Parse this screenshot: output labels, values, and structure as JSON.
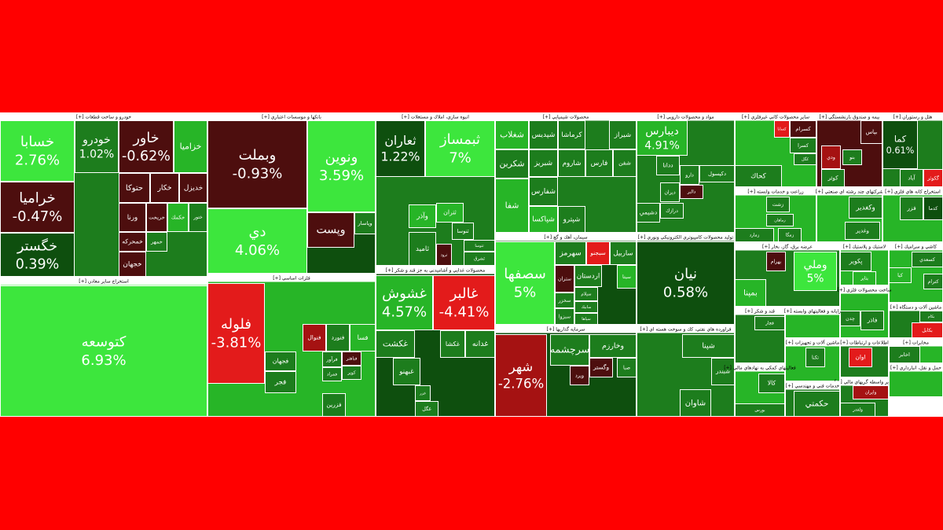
{
  "chart_data": {
    "type": "treemap",
    "sectors": [
      {
        "name": "[+] خودرو و ساخت قطعات",
        "color": "#1d7d1d",
        "tiles": [
          {
            "label": "خسابا",
            "value": 2.76,
            "value_label": "2.76%",
            "color": "#3de63d"
          },
          {
            "label": "خراميا",
            "value": -0.47,
            "value_label": "-0.47%",
            "color": "#4d0e0e"
          },
          {
            "label": "خگستر",
            "value": 0.39,
            "value_label": "0.39%",
            "color": "#0e4f0e"
          },
          {
            "label": "خودرو",
            "value": 1.02,
            "value_label": "1.02%",
            "color": "#1d7d1d"
          },
          {
            "label": "خاور",
            "value": -0.62,
            "value_label": "-0.62%",
            "color": "#4d0e0e"
          },
          {
            "label": "خزامیا",
            "color": "#27b527"
          },
          {
            "label": "حتوكا",
            "color": "#4d0e0e"
          },
          {
            "label": "خكار",
            "color": "#4d0e0e"
          },
          {
            "label": "خديزل",
            "color": "#4d0e0e"
          },
          {
            "label": "ورنا",
            "color": "#4d0e0e"
          },
          {
            "label": "خريخت",
            "color": "#4d0e0e"
          },
          {
            "label": "خكمك",
            "color": "#27b527"
          },
          {
            "label": "ختور",
            "color": "#1d7d1d"
          },
          {
            "label": "خمحركه",
            "color": "#4d0e0e"
          },
          {
            "label": "خمهر",
            "color": "#1d7d1d"
          },
          {
            "label": "خجهان",
            "color": "#4d0e0e"
          }
        ]
      },
      {
        "name": "[+] استخراج ساير معادن",
        "color": "#3de63d",
        "tiles": [
          {
            "label": "كتوسعه",
            "value": 6.93,
            "value_label": "6.93%",
            "color": "#3de63d"
          }
        ]
      },
      {
        "name": "[+] بانكها و موسسات اعتباري",
        "color": "#0e4f0e",
        "tiles": [
          {
            "label": "وبملت",
            "value": -0.93,
            "value_label": "-0.93%",
            "color": "#4d0e0e"
          },
          {
            "label": "ونوين",
            "value": 3.59,
            "value_label": "3.59%",
            "color": "#3de63d"
          },
          {
            "label": "دي",
            "value": 4.06,
            "value_label": "4.06%",
            "color": "#3de63d"
          },
          {
            "label": "وپست",
            "color": "#4d0e0e"
          },
          {
            "label": "وپاسار",
            "color": "#1d7d1d"
          }
        ]
      },
      {
        "name": "[+] فلزات اساسي",
        "color": "#27b527",
        "tiles": [
          {
            "label": "فلوله",
            "value": -3.81,
            "value_label": "-3.81%",
            "color": "#e31b1b"
          },
          {
            "label": "فنوال",
            "color": "#a51212"
          },
          {
            "label": "فنورد",
            "color": "#1d7d1d"
          },
          {
            "label": "فسا",
            "color": "#27b527"
          },
          {
            "label": "فجهان",
            "color": "#1d7d1d"
          },
          {
            "label": "فرآور",
            "color": "#1d7d1d"
          },
          {
            "label": "فباهنر",
            "color": "#4d0e0e"
          },
          {
            "label": "فمراد",
            "color": "#1d7d1d"
          },
          {
            "label": "كوير",
            "color": "#1d7d1d"
          },
          {
            "label": "فجر",
            "color": "#1d7d1d"
          },
          {
            "label": "فزرين",
            "color": "#1d7d1d"
          }
        ]
      },
      {
        "name": "[+] انبوه سازي، املاك و مستغلات",
        "color": "#1d7d1d",
        "tiles": [
          {
            "label": "ثعاران",
            "value": 1.22,
            "value_label": "1.22%",
            "color": "#0e4f0e"
          },
          {
            "label": "ثبمساز",
            "value": 7,
            "value_label": "7%",
            "color": "#3de63d"
          },
          {
            "label": "وآذر",
            "color": "#27b527"
          },
          {
            "label": "ثتران",
            "color": "#27b527"
          },
          {
            "label": "ثاميد",
            "color": "#1d7d1d"
          },
          {
            "label": "ثرود",
            "color": "#4d0e0e"
          },
          {
            "label": "ثنوسا",
            "color": "#1d7d1d"
          },
          {
            "label": "ثتوسا",
            "color": "#1d7d1d"
          },
          {
            "label": "ثشرق",
            "color": "#1d7d1d"
          }
        ]
      },
      {
        "name": "[+] محصولات غذايي و آشاميدني به جز قند و شكر",
        "color": "#0e4f0e",
        "tiles": [
          {
            "label": "غشوش",
            "value": 4.57,
            "value_label": "4.57%",
            "color": "#27b527"
          },
          {
            "label": "غالبر",
            "value": -4.41,
            "value_label": "-4.41%",
            "color": "#e31b1b"
          },
          {
            "label": "غكشت",
            "color": "#1d7d1d"
          },
          {
            "label": "غكشا",
            "color": "#1d7d1d"
          },
          {
            "label": "غدانه",
            "color": "#1d7d1d"
          },
          {
            "label": "غبهنو",
            "color": "#1d7d1d"
          },
          {
            "label": "غزر",
            "color": "#1d7d1d"
          },
          {
            "label": "غگل",
            "color": "#1d7d1d"
          }
        ]
      },
      {
        "name": "[+] محصولات شيميايي",
        "color": "#1d7d1d",
        "tiles": [
          {
            "label": "شغلاب",
            "color": "#27b527"
          },
          {
            "label": "شپديس",
            "color": "#1d7d1d"
          },
          {
            "label": "كرماشا",
            "color": "#1d7d1d"
          },
          {
            "label": "شيراز",
            "color": "#1d7d1d"
          },
          {
            "label": "شكربن",
            "color": "#1d7d1d"
          },
          {
            "label": "شبريز",
            "color": "#1d7d1d"
          },
          {
            "label": "شاروم",
            "color": "#1d7d1d"
          },
          {
            "label": "فارس",
            "color": "#1d7d1d"
          },
          {
            "label": "شفن",
            "color": "#1d7d1d"
          },
          {
            "label": "شپاكسا",
            "color": "#27b527"
          },
          {
            "label": "شفارس",
            "color": "#1d7d1d"
          },
          {
            "label": "شپترو",
            "color": "#1d7d1d"
          },
          {
            "label": "شفا",
            "color": "#27b527"
          }
        ]
      },
      {
        "name": "[+] سيمان، آهك و گچ",
        "color": "#0e4f0e",
        "tiles": [
          {
            "label": "سصفها",
            "value": 5,
            "value_label": "5%",
            "color": "#3de63d"
          },
          {
            "label": "سهرمز",
            "color": "#1d7d1d"
          },
          {
            "label": "سبجنو",
            "color": "#e31b1b"
          },
          {
            "label": "ساربيل",
            "color": "#1d7d1d"
          },
          {
            "label": "ستران",
            "color": "#4d0e0e"
          },
          {
            "label": "اردستان",
            "color": "#1d7d1d"
          },
          {
            "label": "سيتا",
            "color": "#27b527"
          },
          {
            "label": "سيلام",
            "color": "#1d7d1d"
          },
          {
            "label": "سخزر",
            "color": "#1d7d1d"
          },
          {
            "label": "سابيك",
            "color": "#1d7d1d"
          },
          {
            "label": "سبزوا",
            "color": "#1d7d1d"
          },
          {
            "label": "سپاها",
            "color": "#1d7d1d"
          }
        ]
      },
      {
        "name": "[+] سرمايه گذاريها",
        "color": "#0e4f0e",
        "tiles": [
          {
            "label": "شهر",
            "value": -2.76,
            "value_label": "-2.76%",
            "color": "#a51212"
          },
          {
            "label": "سرچشمه",
            "color": "#1d7d1d"
          },
          {
            "label": "وخارزم",
            "color": "#1d7d1d"
          },
          {
            "label": "ويرد",
            "color": "#4d0e0e"
          },
          {
            "label": "وگستر",
            "color": "#4d0e0e"
          },
          {
            "label": "صبا",
            "color": "#1d7d1d"
          }
        ]
      },
      {
        "name": "[+] مواد و محصولات دارويي",
        "color": "#1d7d1d",
        "tiles": [
          {
            "label": "ديبارس",
            "value": 4.91,
            "value_label": "4.91%",
            "color": "#27b527"
          },
          {
            "label": "دارو",
            "color": "#1d7d1d"
          },
          {
            "label": "ددانا",
            "color": "#1d7d1d"
          },
          {
            "label": "دكپسول",
            "color": "#1d7d1d"
          },
          {
            "label": "ديران",
            "color": "#1d7d1d"
          },
          {
            "label": "دالبر",
            "color": "#4d0e0e"
          },
          {
            "label": "درازك",
            "color": "#1d7d1d"
          },
          {
            "label": "دشيمي",
            "color": "#1d7d1d"
          }
        ]
      },
      {
        "name": "[+] توليد محصولات كامپيوتري الكترونيكي ونوري",
        "color": "#0e4f0e",
        "tiles": [
          {
            "label": "نيان",
            "value": 0.58,
            "value_label": "0.58%",
            "color": "#0e4f0e"
          }
        ]
      },
      {
        "name": "[+] فراورده هاي نفتي، كك و سوخت هسته اي",
        "color": "#1d7d1d",
        "tiles": [
          {
            "label": "شپنا",
            "color": "#1d7d1d"
          },
          {
            "label": "شبندر",
            "color": "#1d7d1d"
          },
          {
            "label": "شاوان",
            "color": "#1d7d1d"
          }
        ]
      },
      {
        "name": "[+] ساير محصولات كاني غيرفلزي",
        "color": "#27b527",
        "tiles": [
          {
            "label": "كسرام",
            "color": "#4d0e0e"
          },
          {
            "label": "كسابا",
            "color": "#e31b1b"
          },
          {
            "label": "كسرا",
            "color": "#1d7d1d"
          },
          {
            "label": "كگل",
            "color": "#1d7d1d"
          },
          {
            "label": "كحاك",
            "color": "#1d7d1d"
          }
        ]
      },
      {
        "name": "[+] بيمه و صندوق بازنشستگي",
        "color": "#4d0e0e",
        "tiles": [
          {
            "label": "بپاس",
            "color": "#4d0e0e"
          },
          {
            "label": "ودي",
            "color": "#a51212"
          },
          {
            "label": "بنو",
            "color": "#1d7d1d"
          },
          {
            "label": "كوثر",
            "color": "#1d7d1d"
          }
        ]
      },
      {
        "name": "[+] هتل و رستوران",
        "color": "#1d7d1d",
        "tiles": [
          {
            "label": "كما",
            "value": 0.61,
            "value_label": "0.61%",
            "color": "#0e4f0e"
          },
          {
            "label": "آباد",
            "color": "#1d7d1d"
          },
          {
            "label": "گكوثر",
            "color": "#e31b1b"
          }
        ]
      },
      {
        "name": "[+] زراعت و خدمات وابسته",
        "color": "#27b527",
        "tiles": [
          {
            "label": "زشت",
            "color": "#1d7d1d"
          },
          {
            "label": "زماهان",
            "color": "#1d7d1d"
          },
          {
            "label": "زمارد",
            "color": "#1d7d1d"
          },
          {
            "label": "زمگا",
            "color": "#1d7d1d"
          }
        ]
      },
      {
        "name": "[+] شركتهاي چند رشته اي صنعتي",
        "color": "#27b527",
        "tiles": [
          {
            "label": "وكغدير",
            "color": "#1d7d1d"
          },
          {
            "label": "وغدير",
            "color": "#1d7d1d"
          }
        ]
      },
      {
        "name": "[+] استخراج كانه هاي فلزي",
        "color": "#27b527",
        "tiles": [
          {
            "label": "فزر",
            "color": "#1d7d1d"
          },
          {
            "label": "كدما",
            "color": "#0e4f0e"
          }
        ]
      },
      {
        "name": "[+] عرضه برق، گاز، بخار",
        "color": "#1d7d1d",
        "tiles": [
          {
            "label": "بهرام",
            "color": "#4d0e0e"
          },
          {
            "label": "وملي",
            "value": 5,
            "value_label": "5%",
            "color": "#3de63d"
          },
          {
            "label": "بمپنا",
            "color": "#27b527"
          }
        ]
      },
      {
        "name": "[+] لاستيك و پلاستيك",
        "color": "#27b527",
        "tiles": [
          {
            "label": "پكوير",
            "color": "#1d7d1d"
          },
          {
            "label": "پتاير",
            "color": "#27b527"
          }
        ]
      },
      {
        "name": "[+] كاشي و سراميك",
        "color": "#27b527",
        "tiles": [
          {
            "label": "كسعدي",
            "color": "#1d7d1d"
          },
          {
            "label": "كيا",
            "color": "#27b527"
          },
          {
            "label": "كترام",
            "color": "#1d7d1d"
          }
        ]
      },
      {
        "name": "[+] قند و شكر",
        "color": "#1d7d1d",
        "tiles": [
          {
            "label": "قچار",
            "color": "#1d7d1d"
          }
        ]
      },
      {
        "name": "[+] ساخت محصولات فلزي",
        "color": "#27b527",
        "tiles": [
          {
            "label": "فاذر",
            "color": "#1d7d1d"
          },
          {
            "label": "چدن",
            "color": "#1d7d1d"
          }
        ]
      },
      {
        "name": "[+] ماشين آلات و دستگاه",
        "color": "#1d7d1d",
        "tiles": [
          {
            "label": "بكام",
            "color": "#1d7d1d"
          },
          {
            "label": "بكابل",
            "color": "#e31b1b"
          }
        ]
      },
      {
        "name": "[+] رايانه و فعاليتهاي وابسته",
        "color": "#27b527",
        "tiles": []
      },
      {
        "name": "[+] ماشين آلات و تجهيزات",
        "color": "#27b527",
        "tiles": [
          {
            "label": "تكنا",
            "color": "#1d7d1d"
          }
        ]
      },
      {
        "name": "[+] اطلاعات و ارتباطات",
        "color": "#1d7d1d",
        "tiles": [
          {
            "label": "اوان",
            "color": "#e31b1b"
          }
        ]
      },
      {
        "name": "[+] مخابرات",
        "color": "#27b527",
        "tiles": [
          {
            "label": "اخابر",
            "color": "#1d7d1d"
          }
        ]
      },
      {
        "name": "[+] فعاليتهاي كمكي به نهادهاي مالي",
        "color": "#27b527",
        "tiles": [
          {
            "label": "كالا",
            "color": "#1d7d1d"
          },
          {
            "label": "بورس",
            "color": "#1d7d1d"
          }
        ]
      },
      {
        "name": "[+] ساير واسطه گريهاي مالي",
        "color": "#1d7d1d",
        "tiles": [
          {
            "label": "وايران",
            "color": "#a51212"
          },
          {
            "label": "ولغدر",
            "color": "#1d7d1d"
          }
        ]
      },
      {
        "name": "[+] حمل و نقل، انبارداري",
        "color": "#27b527",
        "tiles": []
      },
      {
        "name": "[+] خدمات فني و مهندسي",
        "color": "#1d7d1d",
        "tiles": [
          {
            "label": "حكمتي",
            "color": "#1d7d1d"
          }
        ]
      }
    ]
  }
}
